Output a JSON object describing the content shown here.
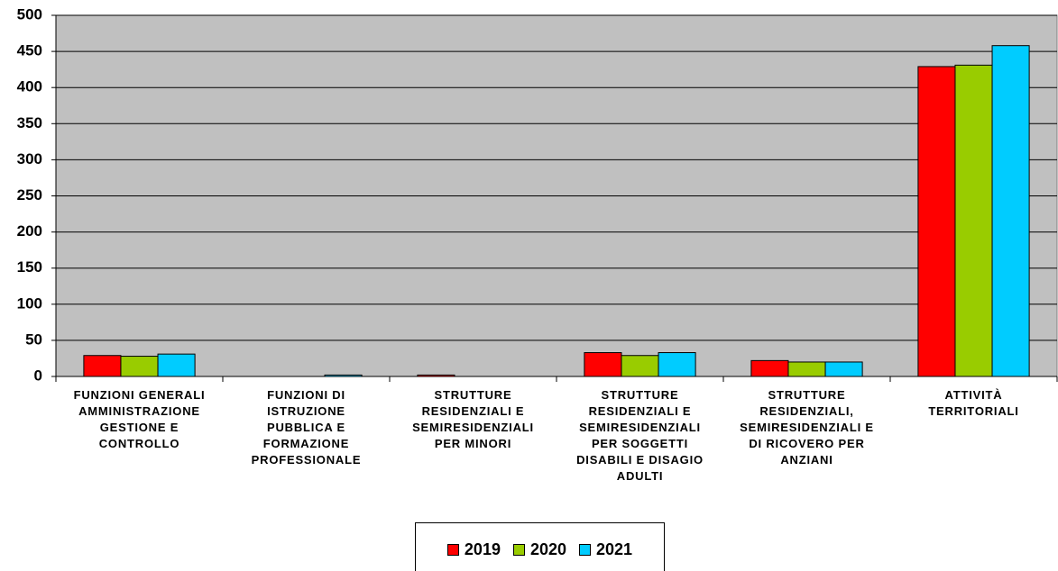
{
  "chart_data": {
    "type": "bar",
    "categories": [
      "FUNZIONI GENERALI AMMINISTRAZIONE GESTIONE  E CONTROLLO",
      "FUNZIONI DI ISTRUZIONE PUBBLICA E FORMAZIONE PROFESSIONALE",
      "STRUTTURE RESIDENZIALI E SEMIRESIDENZIALI PER MINORI",
      "STRUTTURE RESIDENZIALI E SEMIRESIDENZIALI PER SOGGETTI DISABILI E DISAGIO ADULTI",
      "STRUTTURE RESIDENZIALI, SEMIRESIDENZIALI E DI RICOVERO PER ANZIANI",
      "ATTIVITÀ TERRITORIALI"
    ],
    "series": [
      {
        "name": "2019",
        "color": "#ff0000",
        "values": [
          29,
          0,
          2,
          33,
          22,
          429
        ]
      },
      {
        "name": "2020",
        "color": "#99cc00",
        "values": [
          28,
          0,
          0,
          29,
          20,
          431
        ]
      },
      {
        "name": "2021",
        "color": "#00ccff",
        "values": [
          31,
          2,
          0,
          33,
          20,
          458
        ]
      }
    ],
    "ylim": [
      0,
      500
    ],
    "yticks": [
      0,
      50,
      100,
      150,
      200,
      250,
      300,
      350,
      400,
      450,
      500
    ],
    "grid": true,
    "legend": "bottom"
  }
}
